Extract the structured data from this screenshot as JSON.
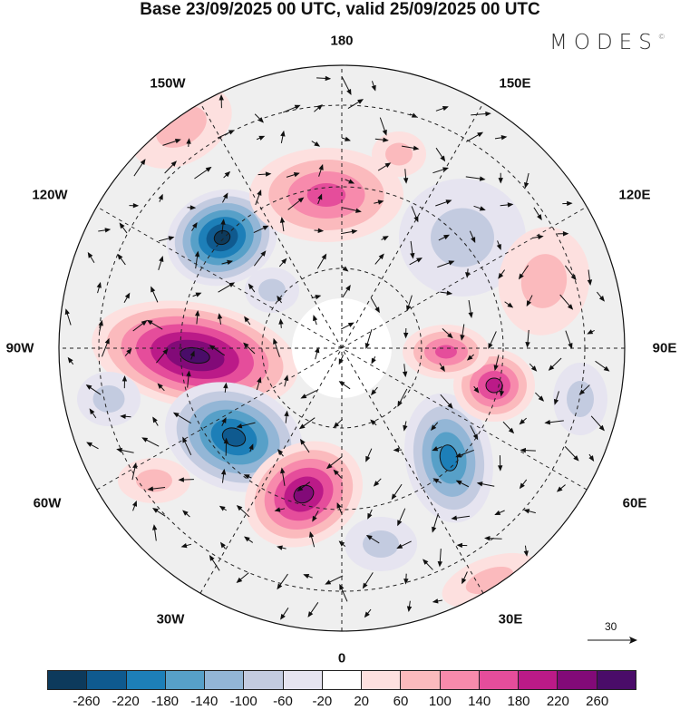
{
  "title": "Base 23/09/2025 00 UTC, valid 25/09/2025 00 UTC",
  "brand": {
    "text": "MODES",
    "mark": "©"
  },
  "longitude_labels": [
    "180",
    "150E",
    "120E",
    "90E",
    "60E",
    "30E",
    "0",
    "30W",
    "60W",
    "90W",
    "120W",
    "150W"
  ],
  "vector_reference": {
    "value": "30"
  },
  "colorbar": {
    "colors": [
      "#0d3a5c",
      "#0f5a8f",
      "#1d7fb8",
      "#57a0c8",
      "#93b6d6",
      "#c3cbe0",
      "#e6e4f0",
      "#ffffff",
      "#fde0df",
      "#fbbabd",
      "#f78aac",
      "#e54d9b",
      "#bb1a88",
      "#820a78",
      "#4a0c69"
    ],
    "ticks": [
      "-260",
      "-220",
      "-180",
      "-140",
      "-100",
      "-60",
      "-20",
      "20",
      "60",
      "100",
      "140",
      "180",
      "220",
      "260"
    ]
  }
}
